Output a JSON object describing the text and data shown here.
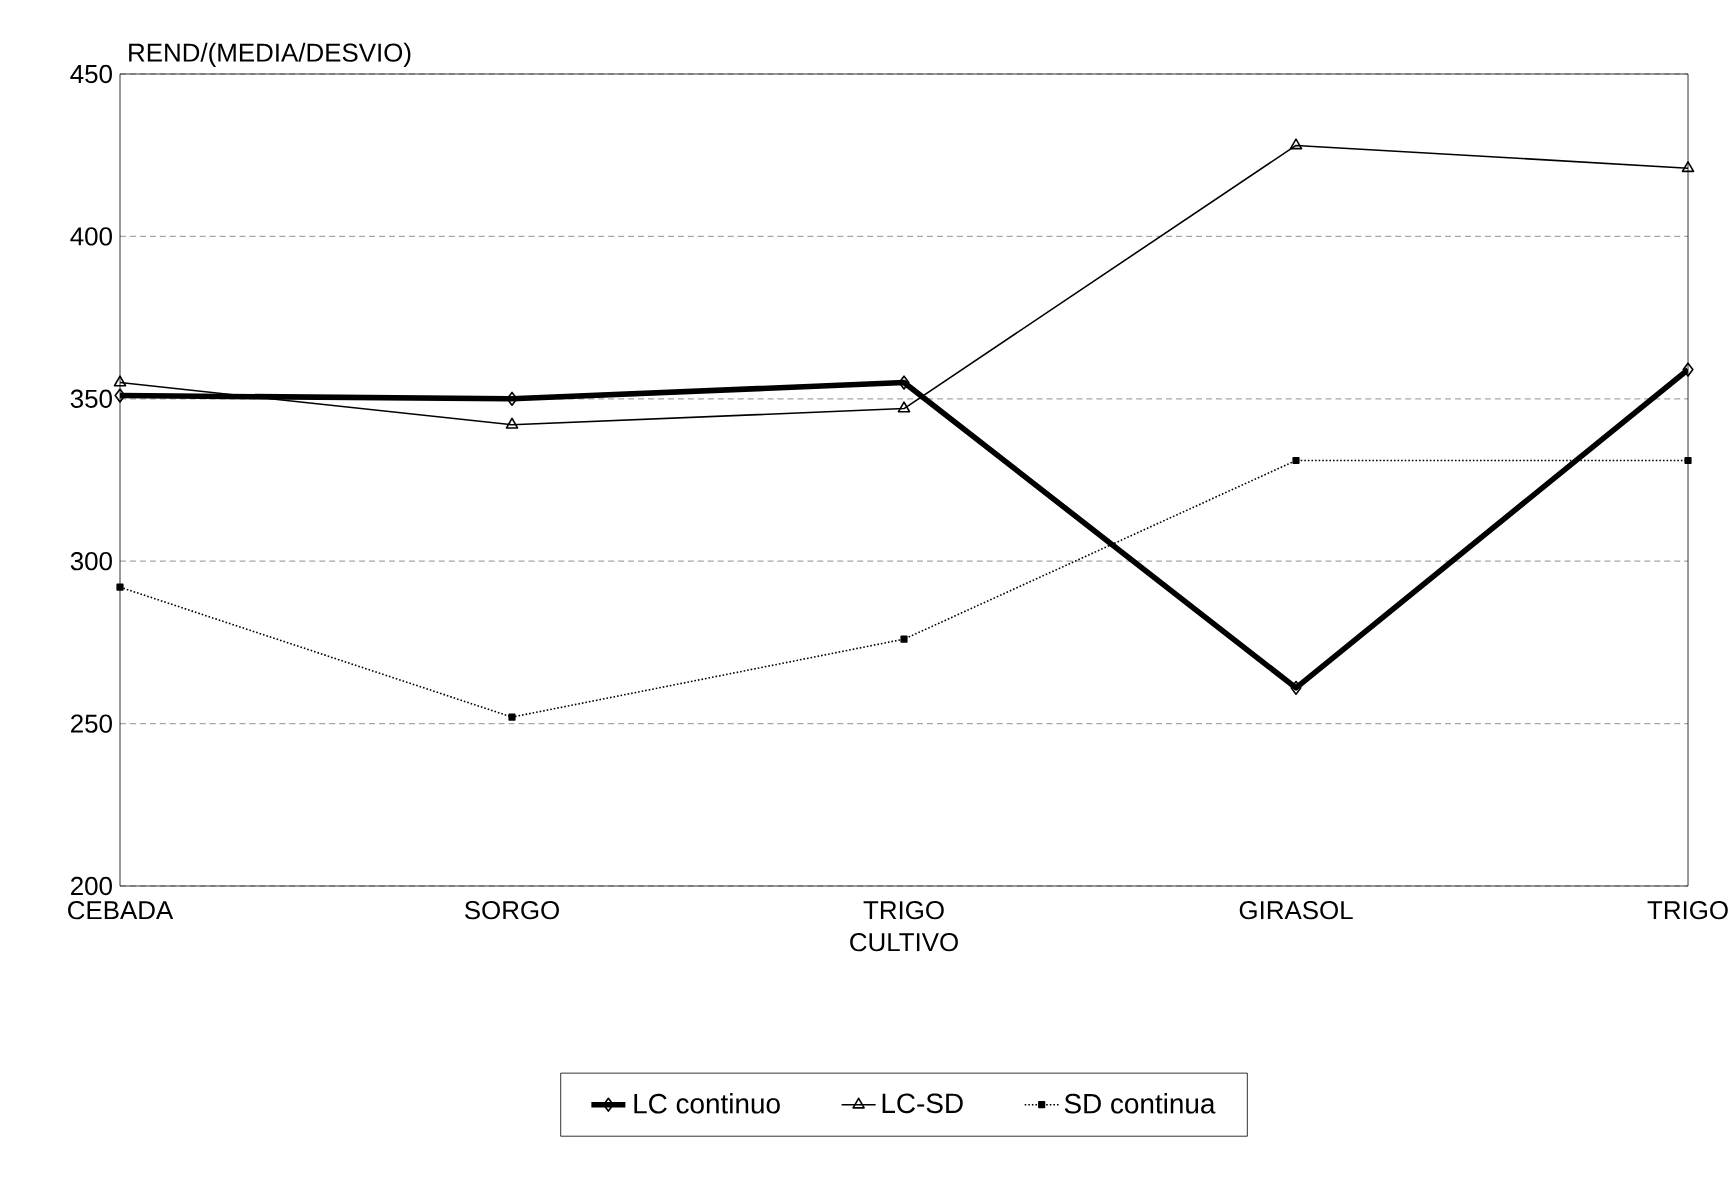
{
  "chart_data": {
    "type": "line",
    "xlabel": "CULTIVO",
    "ylabel": "REND/(MEDIA/DESVIO)",
    "categories": [
      "CEBADA",
      "SORGO",
      "TRIGO",
      "GIRASOL",
      "TRIGO"
    ],
    "series": [
      {
        "name": "LC continuo",
        "color": "#000000",
        "marker": "diamond",
        "line_style": "solid",
        "values": [
          351,
          350,
          355,
          261,
          359
        ]
      },
      {
        "name": "LC-SD",
        "color": "#000000",
        "marker": "triangle",
        "line_style": "solid",
        "values": [
          355,
          342,
          347,
          428,
          421
        ]
      },
      {
        "name": "SD continua",
        "color": "#000000",
        "marker": "square",
        "line_style": "dotted",
        "values": [
          292,
          252,
          276,
          331,
          331
        ]
      }
    ],
    "ylim": [
      200,
      450
    ],
    "yticks": [
      200,
      250,
      300,
      350,
      400,
      450
    ],
    "grid": "y",
    "legend": "bottom"
  }
}
